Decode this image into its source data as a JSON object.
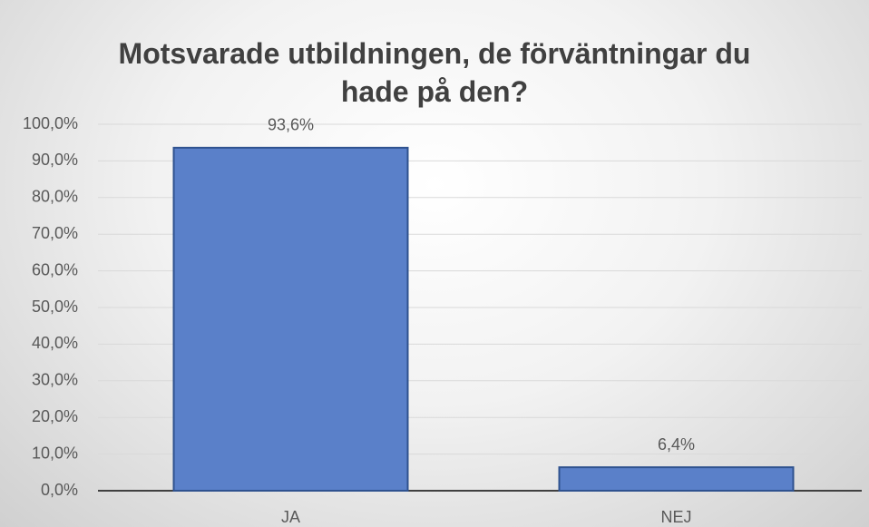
{
  "chart_data": {
    "type": "bar",
    "title": "Motsvarade utbildningen, de förväntningar du hade på den?",
    "categories": [
      "JA",
      "NEJ"
    ],
    "values": [
      93.6,
      6.4
    ],
    "value_labels": [
      "93,6%",
      "6,4%"
    ],
    "color": "#5a80c9",
    "ylim": [
      0,
      100
    ],
    "yticks": [
      {
        "value": 0,
        "label": "0,0%"
      },
      {
        "value": 10,
        "label": "10,0%"
      },
      {
        "value": 20,
        "label": "20,0%"
      },
      {
        "value": 30,
        "label": "30,0%"
      },
      {
        "value": 40,
        "label": "40,0%"
      },
      {
        "value": 50,
        "label": "50,0%"
      },
      {
        "value": 60,
        "label": "60,0%"
      },
      {
        "value": 70,
        "label": "70,0%"
      },
      {
        "value": 80,
        "label": "80,0%"
      },
      {
        "value": 90,
        "label": "90,0%"
      },
      {
        "value": 100,
        "label": "100,0%"
      }
    ],
    "grid": true
  }
}
